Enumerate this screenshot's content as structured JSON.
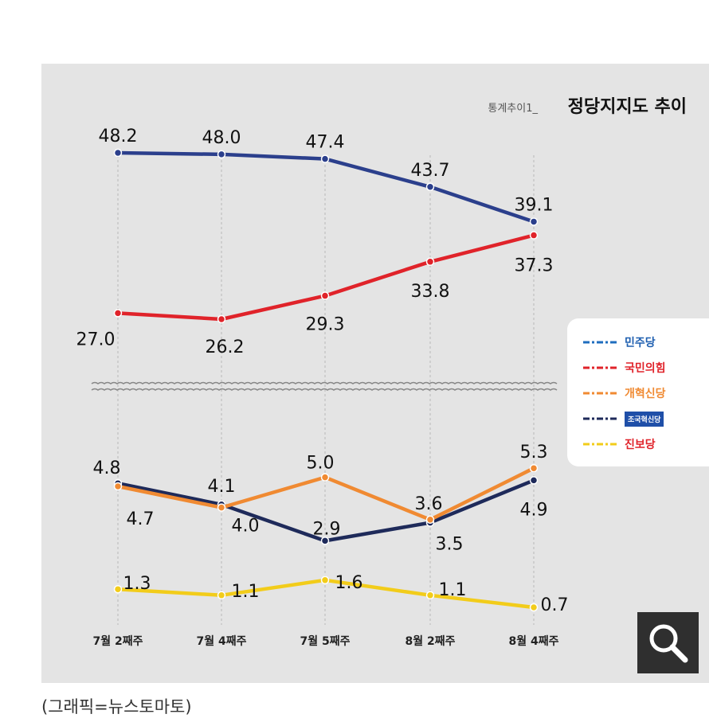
{
  "title_small": "통계추이1_",
  "title_main": "정당지지도 추이",
  "caption": "(그래픽=뉴스토마토)",
  "zoom_icon": "magnifier-icon",
  "chart_data": {
    "type": "line",
    "categories": [
      "7월 2째주",
      "7월 4째주",
      "7월 5째주",
      "8월 2째주",
      "8월 4째주"
    ],
    "series": [
      {
        "name": "민주당",
        "color": "#2b3f8c",
        "values": [
          48.2,
          48.0,
          47.4,
          43.7,
          39.1
        ]
      },
      {
        "name": "국민의힘",
        "color": "#e0232a",
        "values": [
          27.0,
          26.2,
          29.3,
          33.8,
          37.3
        ]
      },
      {
        "name": "개혁신당",
        "color": "#f08a32",
        "values": [
          4.7,
          4.0,
          5.0,
          3.6,
          5.3
        ]
      },
      {
        "name": "조국혁신당",
        "color": "#1e2a5a",
        "values": [
          4.8,
          4.1,
          2.9,
          3.5,
          4.9
        ]
      },
      {
        "name": "진보당",
        "color": "#f2cc1a",
        "values": [
          1.3,
          1.1,
          1.6,
          1.1,
          0.7
        ]
      }
    ],
    "data_labels": [
      [
        "48.2",
        "48.0",
        "47.4",
        "43.7",
        "39.1"
      ],
      [
        "27.0",
        "26.2",
        "29.3",
        "33.8",
        "37.3"
      ],
      [
        "4.7",
        "4.0",
        "5.0",
        "3.6",
        "5.3"
      ],
      [
        "4.8",
        "4.1",
        "2.9",
        "3.5",
        "4.9"
      ],
      [
        "1.3",
        "1.1",
        "1.6",
        "1.1",
        "0.7"
      ]
    ],
    "axis_break": true,
    "grid": "vertical dashed",
    "legend_position": "right"
  }
}
